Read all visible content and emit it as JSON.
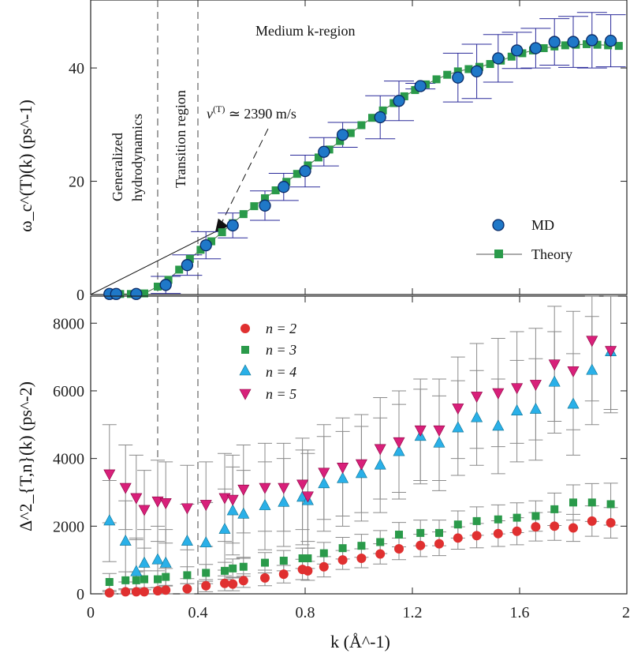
{
  "chart_data": [
    {
      "type": "scatter",
      "panel": "top",
      "ylabel": "ω_c^(T)(k) (ps^-1)",
      "xlim": [
        0,
        2
      ],
      "ylim": [
        0,
        52
      ],
      "yticks": [
        0,
        20,
        40
      ],
      "annotations": {
        "region_medium": "Medium k-region",
        "region_gen_line1": "Generalized",
        "region_gen_line2": "hydrodynamics",
        "region_transition": "Transition region",
        "velocity": "v^(T) ≃ 2390 m/s",
        "velocity_prefix": "v",
        "velocity_sup": "(T)",
        "velocity_value": " ≃ 2390 m/s"
      },
      "dashed_lines_x": [
        0.25,
        0.4
      ],
      "slope_line": {
        "x": [
          0,
          0.47
        ],
        "y": [
          0,
          11.2
        ]
      },
      "legend": {
        "md": "MD",
        "theory": "Theory",
        "placement": "right"
      },
      "series": [
        {
          "name": "MD",
          "color": "#1f78c8",
          "x": [
            0.07,
            0.095,
            0.17,
            0.28,
            0.36,
            0.43,
            0.53,
            0.65,
            0.72,
            0.8,
            0.87,
            0.94,
            1.08,
            1.15,
            1.23,
            1.37,
            1.44,
            1.52,
            1.59,
            1.66,
            1.73,
            1.8,
            1.87,
            1.94
          ],
          "y": [
            0.1,
            0.1,
            0.1,
            1.7,
            5.2,
            8.7,
            12.2,
            15.7,
            19.0,
            21.8,
            25.2,
            28.2,
            31.3,
            34.2,
            36.8,
            38.3,
            39.4,
            41.7,
            43.1,
            43.5,
            44.6,
            44.6,
            44.9,
            44.8
          ],
          "err": [
            0,
            0,
            0,
            1.5,
            1.8,
            2.4,
            2.2,
            2.6,
            2.4,
            2.8,
            2.5,
            2.2,
            3.8,
            3.5,
            0.5,
            4.3,
            4.8,
            4.2,
            3.2,
            3.5,
            4.1,
            4.5,
            4.9,
            4.6
          ]
        },
        {
          "name": "Theory",
          "color": "#2a9a4a",
          "x": [
            0.07,
            0.11,
            0.15,
            0.2,
            0.25,
            0.29,
            0.33,
            0.37,
            0.41,
            0.45,
            0.49,
            0.53,
            0.57,
            0.61,
            0.65,
            0.69,
            0.73,
            0.77,
            0.81,
            0.85,
            0.89,
            0.93,
            0.97,
            1.01,
            1.05,
            1.09,
            1.13,
            1.17,
            1.21,
            1.25,
            1.29,
            1.33,
            1.37,
            1.41,
            1.45,
            1.49,
            1.53,
            1.57,
            1.61,
            1.65,
            1.69,
            1.73,
            1.77,
            1.81,
            1.85,
            1.89,
            1.93,
            1.97
          ],
          "y": [
            0.1,
            0.1,
            0.1,
            0.2,
            1.4,
            2.6,
            4.4,
            6.3,
            7.9,
            9.4,
            11.0,
            12.6,
            14.2,
            15.6,
            17.0,
            18.4,
            19.9,
            21.3,
            22.8,
            24.2,
            25.6,
            27.1,
            28.5,
            29.9,
            31.2,
            32.5,
            33.8,
            35.0,
            36.1,
            37.1,
            38.0,
            38.8,
            39.4,
            39.8,
            40.2,
            40.7,
            41.3,
            42.0,
            42.6,
            43.1,
            43.5,
            43.8,
            44.0,
            44.1,
            44.2,
            44.1,
            44.0,
            43.9
          ]
        }
      ]
    },
    {
      "type": "scatter",
      "panel": "bottom",
      "xlabel": "k (Å^-1)",
      "ylabel": "Δ^2_{T,n}(k) (ps^-2)",
      "xlim": [
        0,
        2
      ],
      "ylim": [
        0,
        8800
      ],
      "xticks": [
        0,
        0.4,
        0.8,
        1.2,
        1.6,
        2
      ],
      "xtick_labels": [
        "0",
        "0.4",
        "0.8",
        "1.2",
        "1.6",
        "2"
      ],
      "yticks": [
        0,
        2000,
        4000,
        6000,
        8000
      ],
      "legend": {
        "labels": [
          "n = 2",
          "n = 3",
          "n = 4",
          "n = 5"
        ],
        "placement": "top-left"
      },
      "series": [
        {
          "name": "n = 2",
          "color": "#e03030",
          "marker": "circle",
          "x": [
            0.07,
            0.13,
            0.17,
            0.2,
            0.25,
            0.28,
            0.36,
            0.43,
            0.5,
            0.53,
            0.57,
            0.65,
            0.72,
            0.79,
            0.81,
            0.87,
            0.94,
            1.01,
            1.08,
            1.15,
            1.23,
            1.3,
            1.37,
            1.44,
            1.52,
            1.59,
            1.66,
            1.73,
            1.8,
            1.87,
            1.94
          ],
          "y": [
            30,
            60,
            60,
            60,
            90,
            110,
            150,
            240,
            310,
            290,
            390,
            470,
            580,
            720,
            680,
            800,
            1000,
            1050,
            1180,
            1330,
            1430,
            1480,
            1650,
            1720,
            1780,
            1850,
            1980,
            2000,
            1950,
            2150,
            2100
          ],
          "err": [
            30,
            60,
            60,
            60,
            100,
            120,
            150,
            180,
            220,
            200,
            200,
            230,
            260,
            300,
            280,
            300,
            280,
            280,
            300,
            320,
            330,
            350,
            330,
            360,
            380,
            400,
            420,
            420,
            400,
            450,
            450
          ]
        },
        {
          "name": "n = 3",
          "color": "#2a9a4a",
          "marker": "square",
          "x": [
            0.07,
            0.13,
            0.17,
            0.2,
            0.25,
            0.28,
            0.36,
            0.43,
            0.5,
            0.53,
            0.57,
            0.65,
            0.72,
            0.79,
            0.81,
            0.87,
            0.94,
            1.01,
            1.08,
            1.15,
            1.23,
            1.3,
            1.37,
            1.44,
            1.52,
            1.59,
            1.66,
            1.73,
            1.8,
            1.87,
            1.94
          ],
          "y": [
            350,
            400,
            400,
            430,
            430,
            500,
            550,
            620,
            680,
            750,
            800,
            920,
            980,
            1050,
            1050,
            1200,
            1350,
            1420,
            1530,
            1750,
            1800,
            1800,
            2050,
            2150,
            2200,
            2250,
            2300,
            2500,
            2700,
            2700,
            2650
          ],
          "err": [
            250,
            250,
            250,
            250,
            250,
            250,
            250,
            250,
            250,
            280,
            280,
            300,
            300,
            300,
            300,
            320,
            320,
            340,
            340,
            360,
            380,
            380,
            400,
            420,
            430,
            440,
            450,
            480,
            520,
            560,
            620
          ]
        },
        {
          "name": "n = 4",
          "color": "#2ab0e8",
          "marker": "triangle-up",
          "x": [
            0.07,
            0.13,
            0.17,
            0.2,
            0.25,
            0.28,
            0.36,
            0.43,
            0.5,
            0.53,
            0.57,
            0.65,
            0.72,
            0.79,
            0.81,
            0.87,
            0.94,
            1.01,
            1.08,
            1.15,
            1.23,
            1.3,
            1.37,
            1.44,
            1.52,
            1.59,
            1.66,
            1.73,
            1.8,
            1.87,
            1.94
          ],
          "y": [
            2150,
            1550,
            650,
            900,
            1000,
            900,
            1550,
            1500,
            1900,
            2450,
            2350,
            2600,
            2700,
            2850,
            2750,
            3250,
            3400,
            3550,
            3800,
            4200,
            4650,
            4450,
            4900,
            5200,
            4950,
            5400,
            5450,
            6250,
            5600,
            6600,
            7150
          ],
          "err": [
            1200,
            1200,
            1000,
            1000,
            1000,
            1000,
            1100,
            1200,
            1200,
            1300,
            1300,
            1300,
            1300,
            1400,
            1400,
            1400,
            1400,
            1400,
            1400,
            1400,
            1400,
            1400,
            1400,
            1400,
            1400,
            1500,
            1500,
            1500,
            1500,
            1600,
            1700
          ]
        },
        {
          "name": "n = 5",
          "color": "#d8207a",
          "marker": "triangle-down",
          "x": [
            0.07,
            0.13,
            0.17,
            0.2,
            0.25,
            0.28,
            0.36,
            0.43,
            0.5,
            0.53,
            0.57,
            0.65,
            0.72,
            0.79,
            0.81,
            0.87,
            0.94,
            1.01,
            1.08,
            1.15,
            1.23,
            1.3,
            1.37,
            1.44,
            1.52,
            1.59,
            1.66,
            1.73,
            1.8,
            1.87,
            1.94
          ],
          "y": [
            3550,
            3150,
            2850,
            2500,
            2750,
            2700,
            2550,
            2650,
            2850,
            2800,
            3100,
            3150,
            3150,
            3250,
            2900,
            3600,
            3750,
            3850,
            4300,
            4500,
            4850,
            4850,
            5500,
            5850,
            5950,
            6100,
            6200,
            6800,
            6600,
            7500,
            7200
          ],
          "err": [
            1450,
            1250,
            1250,
            1150,
            1200,
            1200,
            1250,
            1250,
            1300,
            1300,
            1300,
            1300,
            1300,
            1350,
            1350,
            1400,
            1450,
            1450,
            1500,
            1500,
            1500,
            1500,
            1500,
            1550,
            1600,
            1650,
            1650,
            1700,
            1750,
            1800,
            1850
          ]
        }
      ]
    }
  ]
}
